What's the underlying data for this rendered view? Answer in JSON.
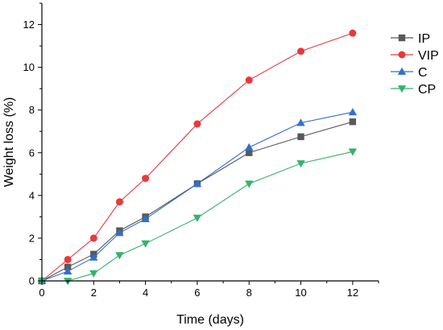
{
  "chart_data": {
    "type": "line",
    "xlabel": "Time (days)",
    "ylabel": "Weight loss (%)",
    "xlim": [
      0,
      13
    ],
    "ylim": [
      0,
      13
    ],
    "x_ticks": [
      0,
      2,
      4,
      6,
      8,
      10,
      12
    ],
    "y_ticks": [
      0,
      2,
      4,
      6,
      8,
      10,
      12
    ],
    "grid": false,
    "legend_position": "top-right",
    "series": [
      {
        "name": "IP",
        "color": "#595959",
        "marker": "square",
        "x": [
          0,
          1,
          2,
          3,
          4,
          6,
          8,
          10,
          12
        ],
        "y": [
          0,
          0.65,
          1.25,
          2.35,
          3.0,
          4.55,
          6.0,
          6.75,
          7.45
        ]
      },
      {
        "name": "VIP",
        "color": "#e8393b",
        "marker": "circle",
        "x": [
          0,
          1,
          2,
          3,
          4,
          6,
          8,
          10,
          12
        ],
        "y": [
          0,
          1.0,
          2.0,
          3.7,
          4.8,
          7.35,
          9.4,
          10.75,
          11.6
        ]
      },
      {
        "name": "C",
        "color": "#2f6fd1",
        "marker": "triangle-up",
        "x": [
          0,
          1,
          2,
          3,
          4,
          6,
          8,
          10,
          12
        ],
        "y": [
          0,
          0.45,
          1.1,
          2.25,
          2.9,
          4.55,
          6.25,
          7.4,
          7.9
        ]
      },
      {
        "name": "CP",
        "color": "#35b26b",
        "marker": "triangle-down",
        "x": [
          0,
          1,
          2,
          3,
          4,
          6,
          8,
          10,
          12
        ],
        "y": [
          0,
          0.0,
          0.35,
          1.2,
          1.75,
          2.95,
          4.55,
          5.5,
          6.05
        ]
      }
    ]
  }
}
